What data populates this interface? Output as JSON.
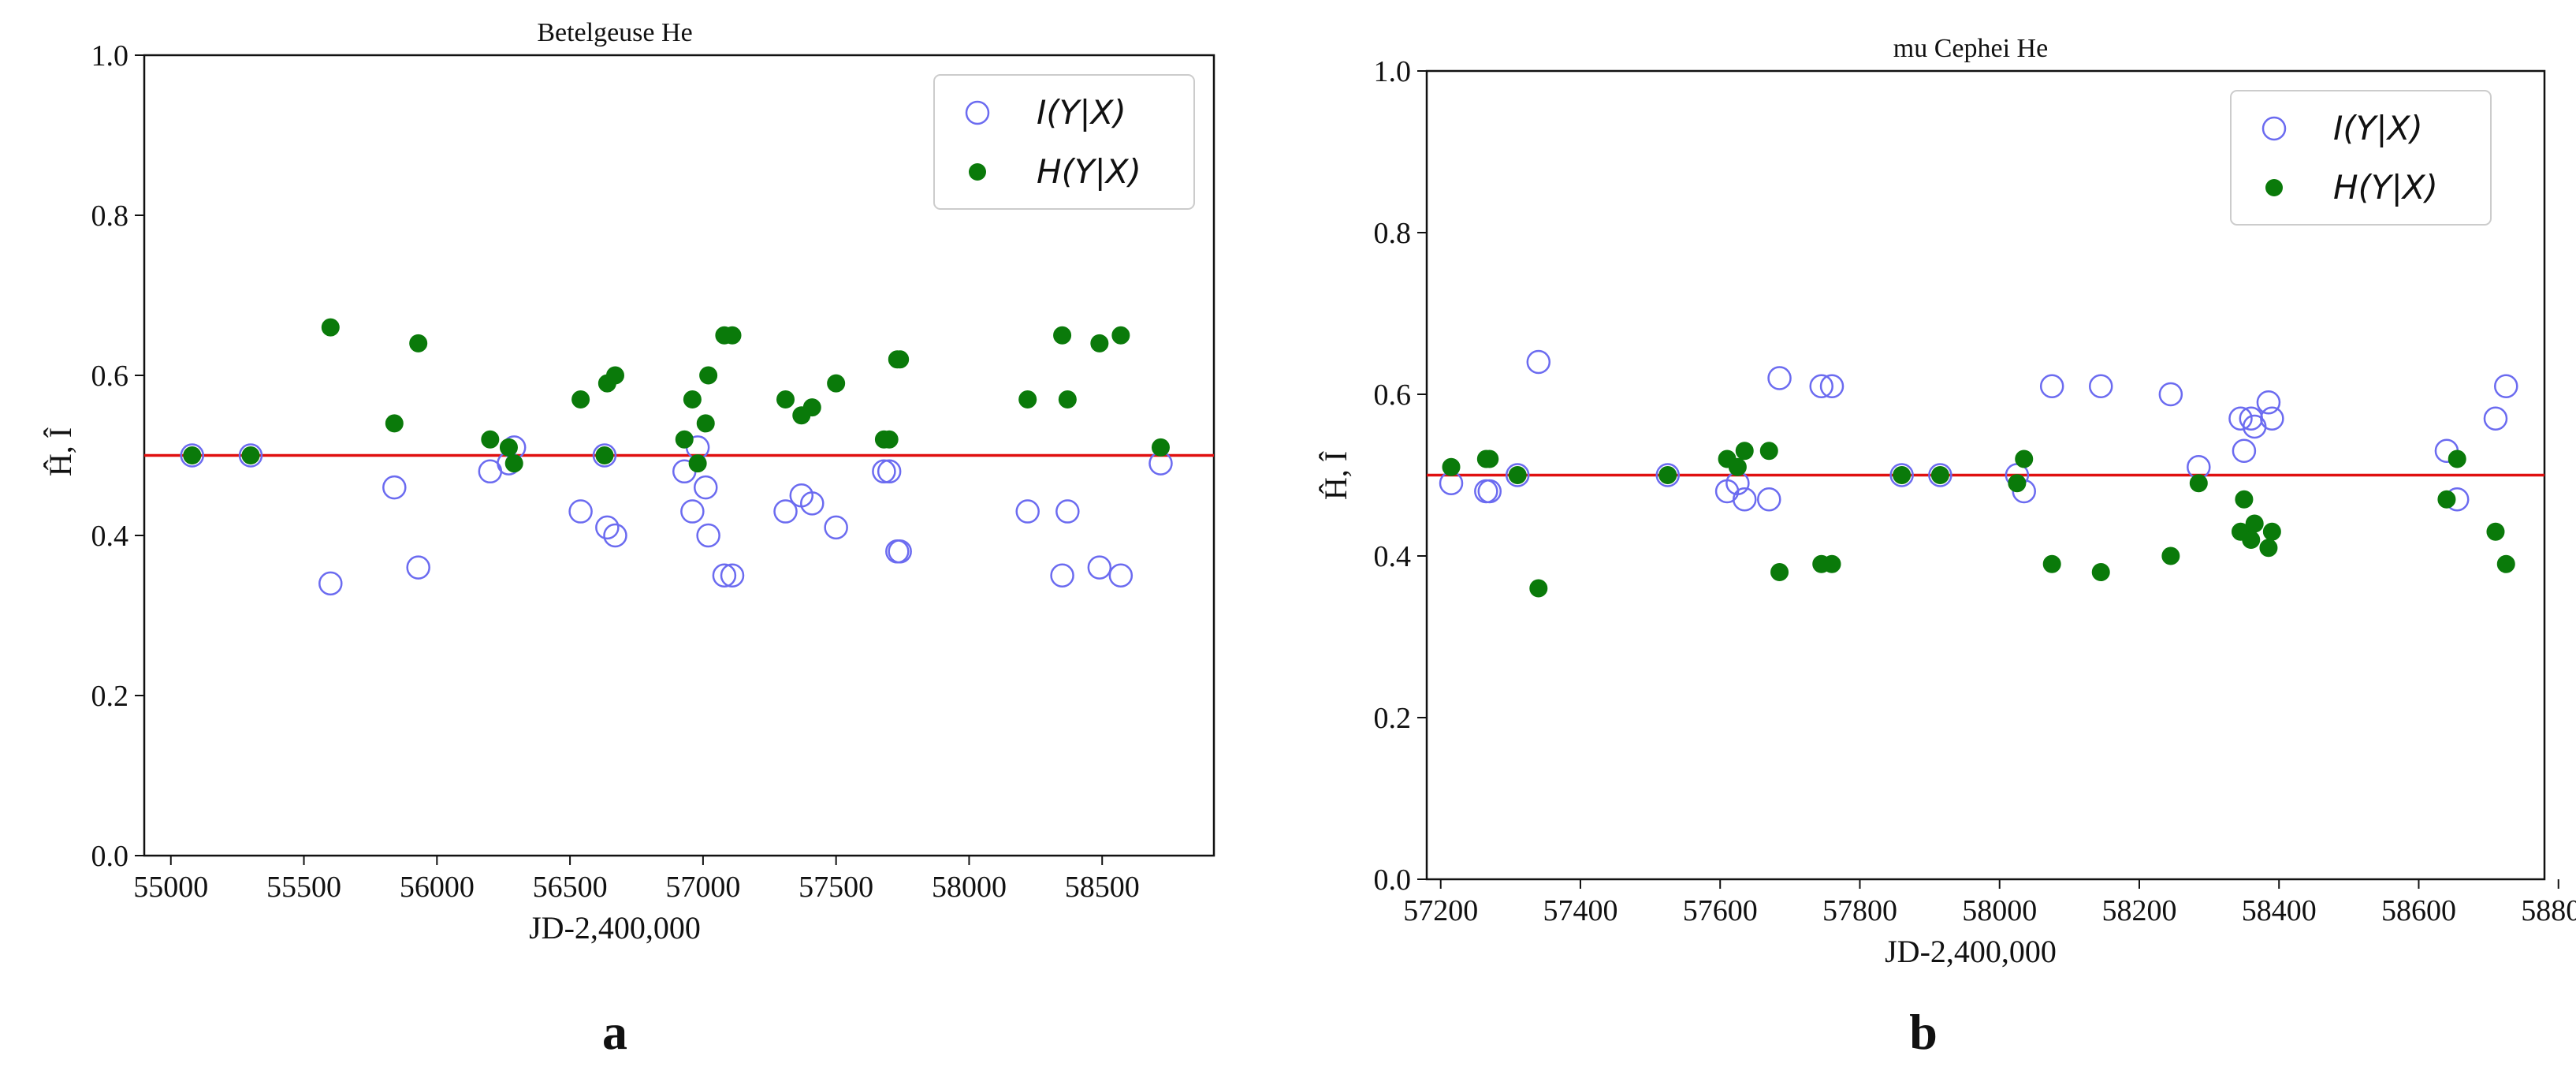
{
  "chart_data": [
    {
      "type": "scatter",
      "title": "Betelgeuse He",
      "panel_label": "a",
      "xlabel": "JD-2,400,000",
      "ylabel": "Ĥ, Î",
      "xlim": [
        54900,
        58920
      ],
      "ylim": [
        0.0,
        1.0
      ],
      "xticks": [
        "55000",
        "55500",
        "56000",
        "56500",
        "57000",
        "57500",
        "58000",
        "58500"
      ],
      "yticks": [
        "0.0",
        "0.2",
        "0.4",
        "0.6",
        "0.8",
        "1.0"
      ],
      "hline": 0.5,
      "legend": [
        "I(Y|X)",
        "H(Y|X)"
      ],
      "legend_position": "upper right",
      "series": [
        {
          "name": "I(Y|X)",
          "style": "hollow-circle",
          "color": "#6b6bf0",
          "x": [
            55080,
            55300,
            55600,
            55840,
            55930,
            56200,
            56270,
            56290,
            56540,
            56630,
            56640,
            56670,
            56930,
            56960,
            56980,
            57010,
            57020,
            57080,
            57110,
            57310,
            57370,
            57410,
            57500,
            57680,
            57700,
            57730,
            57740,
            58220,
            58350,
            58370,
            58490,
            58570,
            58720
          ],
          "y": [
            0.5,
            0.5,
            0.34,
            0.46,
            0.36,
            0.48,
            0.49,
            0.51,
            0.43,
            0.5,
            0.41,
            0.4,
            0.48,
            0.43,
            0.51,
            0.46,
            0.4,
            0.35,
            0.35,
            0.43,
            0.45,
            0.44,
            0.41,
            0.48,
            0.48,
            0.38,
            0.38,
            0.43,
            0.35,
            0.43,
            0.36,
            0.35,
            0.49
          ]
        },
        {
          "name": "H(Y|X)",
          "style": "filled-circle",
          "color": "#0a7a0a",
          "x": [
            55080,
            55300,
            55600,
            55840,
            55930,
            56200,
            56270,
            56290,
            56540,
            56630,
            56640,
            56670,
            56930,
            56960,
            56980,
            57010,
            57020,
            57080,
            57110,
            57310,
            57370,
            57410,
            57500,
            57680,
            57700,
            57730,
            57740,
            58220,
            58350,
            58370,
            58490,
            58570,
            58720
          ],
          "y": [
            0.5,
            0.5,
            0.66,
            0.54,
            0.64,
            0.52,
            0.51,
            0.49,
            0.57,
            0.5,
            0.59,
            0.6,
            0.52,
            0.57,
            0.49,
            0.54,
            0.6,
            0.65,
            0.65,
            0.57,
            0.55,
            0.56,
            0.59,
            0.52,
            0.52,
            0.62,
            0.62,
            0.57,
            0.65,
            0.57,
            0.64,
            0.65,
            0.51
          ]
        }
      ]
    },
    {
      "type": "scatter",
      "title": "mu Cephei He",
      "panel_label": "b",
      "xlabel": "JD-2,400,000",
      "ylabel": "Ĥ, Î",
      "xlim": [
        57180,
        58780
      ],
      "ylim": [
        0.0,
        1.0
      ],
      "xticks": [
        "57200",
        "57400",
        "57600",
        "57800",
        "58000",
        "58200",
        "58400",
        "58600",
        "58800"
      ],
      "yticks": [
        "0.0",
        "0.2",
        "0.4",
        "0.6",
        "0.8",
        "1.0"
      ],
      "hline": 0.5,
      "legend": [
        "I(Y|X)",
        "H(Y|X)"
      ],
      "legend_position": "upper right",
      "series": [
        {
          "name": "I(Y|X)",
          "style": "hollow-circle",
          "color": "#6b6bf0",
          "x": [
            57215,
            57265,
            57270,
            57310,
            57340,
            57525,
            57610,
            57625,
            57635,
            57670,
            57685,
            57745,
            57760,
            57860,
            57915,
            58025,
            58035,
            58075,
            58145,
            58245,
            58285,
            58345,
            58350,
            58360,
            58365,
            58385,
            58390,
            58640,
            58655,
            58710,
            58725
          ],
          "y": [
            0.49,
            0.48,
            0.48,
            0.5,
            0.64,
            0.5,
            0.48,
            0.49,
            0.47,
            0.47,
            0.62,
            0.61,
            0.61,
            0.5,
            0.5,
            0.5,
            0.48,
            0.61,
            0.61,
            0.6,
            0.51,
            0.57,
            0.53,
            0.57,
            0.56,
            0.59,
            0.57,
            0.53,
            0.47,
            0.57,
            0.61
          ]
        },
        {
          "name": "H(Y|X)",
          "style": "filled-circle",
          "color": "#0a7a0a",
          "x": [
            57215,
            57265,
            57270,
            57310,
            57340,
            57525,
            57610,
            57625,
            57635,
            57670,
            57685,
            57745,
            57760,
            57860,
            57915,
            58025,
            58035,
            58075,
            58145,
            58245,
            58285,
            58345,
            58350,
            58360,
            58365,
            58385,
            58390,
            58640,
            58655,
            58710,
            58725
          ],
          "y": [
            0.51,
            0.52,
            0.52,
            0.5,
            0.36,
            0.5,
            0.52,
            0.51,
            0.53,
            0.53,
            0.38,
            0.39,
            0.39,
            0.5,
            0.5,
            0.49,
            0.52,
            0.39,
            0.38,
            0.4,
            0.49,
            0.43,
            0.47,
            0.42,
            0.44,
            0.41,
            0.43,
            0.47,
            0.52,
            0.43,
            0.39
          ]
        }
      ]
    }
  ]
}
